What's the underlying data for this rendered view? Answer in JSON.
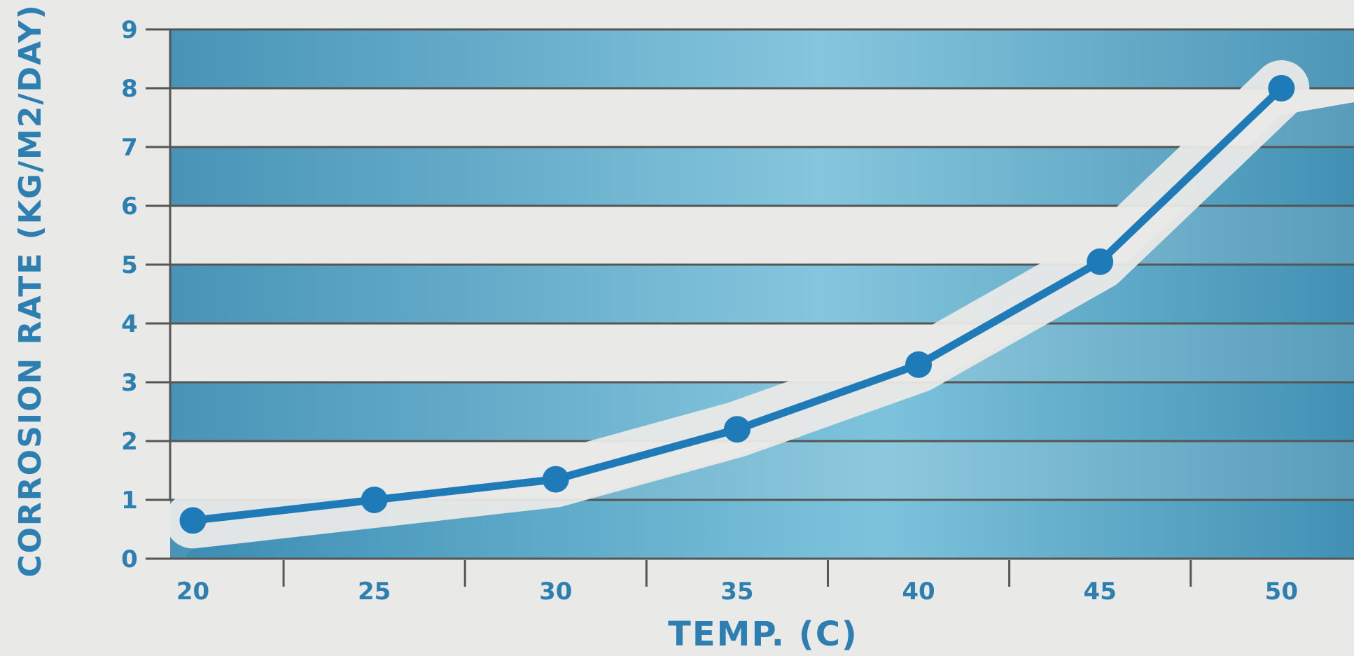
{
  "chart_data": {
    "type": "line",
    "title": "",
    "xlabel": "TEMP. (C)",
    "ylabel": "CORROSION RATE (KG/M2/DAY)",
    "x": [
      20,
      25,
      30,
      35,
      40,
      45,
      50
    ],
    "series": [
      {
        "values": [
          0.65,
          1.0,
          1.35,
          2.2,
          3.3,
          5.05,
          8.0
        ]
      }
    ],
    "xlim": [
      17,
      52
    ],
    "ylim": [
      0,
      9
    ],
    "xticks": [
      "20",
      "25",
      "30",
      "35",
      "40",
      "45",
      "50"
    ],
    "yticks": [
      "0",
      "1",
      "2",
      "3",
      "4",
      "5",
      "6",
      "7",
      "8",
      "9"
    ],
    "grid": true,
    "legend": "none",
    "colors": {
      "line": "#1f7ab8",
      "band": "#3f93b8",
      "background": "#e9e9e7",
      "gridline": "#555555",
      "text": "#2c7fb0"
    }
  }
}
